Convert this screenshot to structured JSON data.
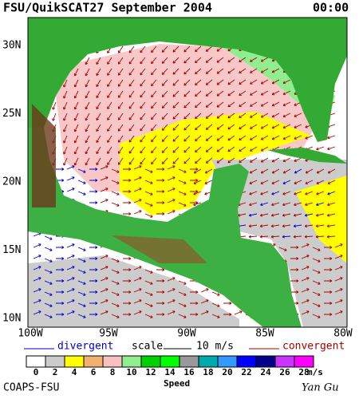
{
  "header": {
    "title": "FSU/QuikSCAT27 September 2004",
    "time": "00:00"
  },
  "lat_labels": [
    "30N",
    "25N",
    "20N",
    "15N",
    "10N"
  ],
  "lon_labels": [
    "100W",
    "95W",
    "90W",
    "85W",
    "80W"
  ],
  "legend": {
    "divergent": "divergent",
    "scale": "scale",
    "scale_value": "10 m/s",
    "convergent": "convergent"
  },
  "colorbar": {
    "labels": [
      "0",
      "2",
      "4",
      "6",
      "8",
      "10",
      "12",
      "14",
      "16",
      "18",
      "20",
      "22",
      "24",
      "26",
      "28"
    ],
    "unit": "m/s",
    "title": "Speed"
  },
  "footer": {
    "left": "COAPS-FSU",
    "right": "Yan Gu"
  }
}
